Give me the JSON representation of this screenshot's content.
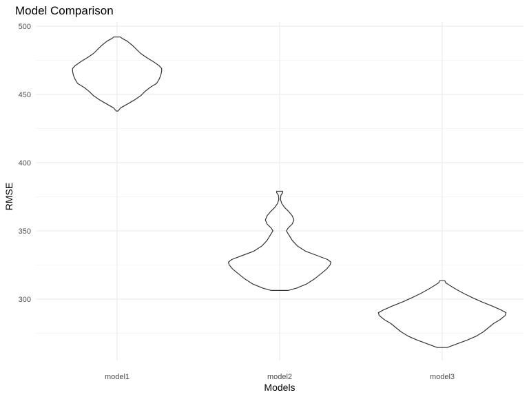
{
  "chart_data": {
    "type": "violin",
    "title": "Model Comparison",
    "xlabel": "Models",
    "ylabel": "RMSE",
    "categories": [
      "model1",
      "model2",
      "model3"
    ],
    "ylim": [
      255,
      505
    ],
    "yticks": [
      300,
      350,
      400,
      450,
      500
    ],
    "grid": true,
    "legend": "none",
    "line_color": "#333333",
    "series": [
      {
        "category": "model1",
        "min": 437.8,
        "max": 492.0,
        "density": [
          [
            437.8,
            0.02
          ],
          [
            440,
            0.08
          ],
          [
            443,
            0.25
          ],
          [
            446,
            0.42
          ],
          [
            449,
            0.56
          ],
          [
            452,
            0.66
          ],
          [
            455,
            0.78
          ],
          [
            458,
            0.94
          ],
          [
            461,
            1.0
          ],
          [
            464,
            1.04
          ],
          [
            467,
            1.06
          ],
          [
            469,
            1.06
          ],
          [
            471,
            1.0
          ],
          [
            474,
            0.86
          ],
          [
            477,
            0.7
          ],
          [
            480,
            0.56
          ],
          [
            483,
            0.46
          ],
          [
            486,
            0.36
          ],
          [
            489,
            0.24
          ],
          [
            491,
            0.12
          ],
          [
            492,
            0.08
          ]
        ]
      },
      {
        "category": "model2",
        "min": 306.3,
        "max": 379.0,
        "density": [
          [
            306.3,
            0.2
          ],
          [
            308,
            0.4
          ],
          [
            311,
            0.64
          ],
          [
            315,
            0.84
          ],
          [
            319,
            1.0
          ],
          [
            322,
            1.12
          ],
          [
            325,
            1.2
          ],
          [
            327,
            1.22
          ],
          [
            329,
            1.14
          ],
          [
            332,
            0.88
          ],
          [
            335,
            0.62
          ],
          [
            339,
            0.42
          ],
          [
            343,
            0.3
          ],
          [
            347,
            0.22
          ],
          [
            350,
            0.16
          ],
          [
            352,
            0.2
          ],
          [
            355,
            0.3
          ],
          [
            358,
            0.34
          ],
          [
            361,
            0.3
          ],
          [
            364,
            0.22
          ],
          [
            367,
            0.12
          ],
          [
            370,
            0.05
          ],
          [
            373,
            0.02
          ],
          [
            376,
            0.03
          ],
          [
            378,
            0.07
          ],
          [
            379,
            0.07
          ]
        ]
      },
      {
        "category": "model3",
        "min": 264.5,
        "max": 313.5,
        "density": [
          [
            264.5,
            0.12
          ],
          [
            267,
            0.34
          ],
          [
            270,
            0.6
          ],
          [
            273,
            0.82
          ],
          [
            276,
            0.98
          ],
          [
            279,
            1.1
          ],
          [
            282,
            1.22
          ],
          [
            285,
            1.38
          ],
          [
            288,
            1.5
          ],
          [
            290,
            1.52
          ],
          [
            292,
            1.4
          ],
          [
            295,
            1.18
          ],
          [
            298,
            0.94
          ],
          [
            301,
            0.72
          ],
          [
            304,
            0.52
          ],
          [
            307,
            0.34
          ],
          [
            310,
            0.18
          ],
          [
            312,
            0.08
          ],
          [
            313.5,
            0.06
          ]
        ]
      }
    ]
  }
}
